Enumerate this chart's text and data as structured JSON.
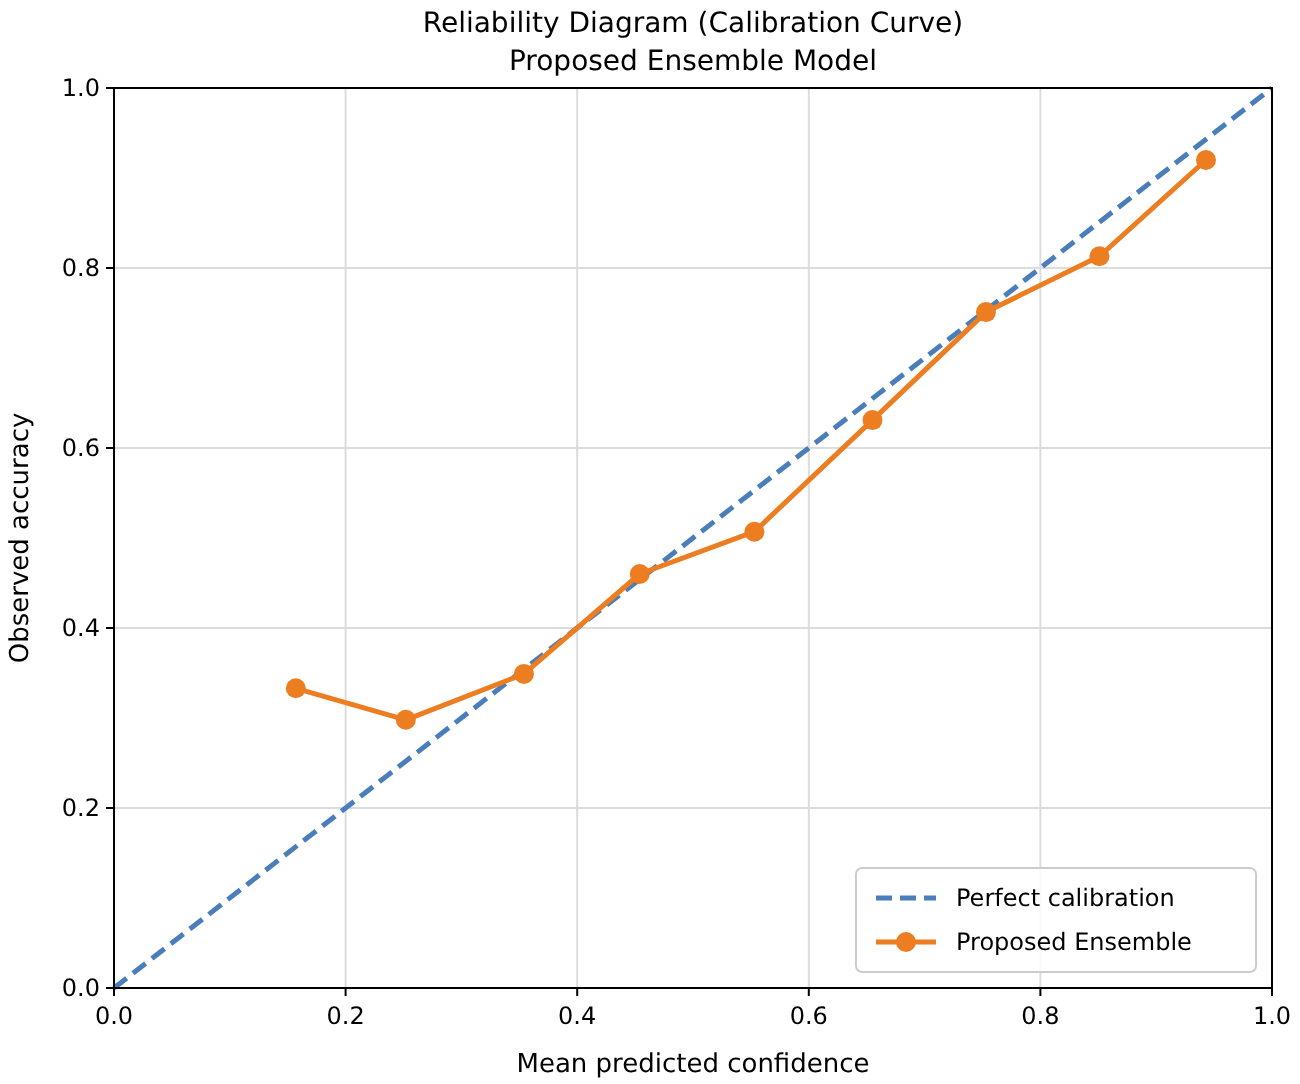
{
  "chart_data": {
    "type": "line",
    "title": "Reliability Diagram (Calibration Curve)",
    "subtitle": "Proposed Ensemble Model",
    "xlabel": "Mean predicted confidence",
    "ylabel": "Observed accuracy",
    "xlim": [
      0,
      1
    ],
    "ylim": [
      0,
      1
    ],
    "xticks": [
      {
        "value": 0,
        "label": "0.0"
      },
      0.2,
      0.4,
      0.6,
      0.8,
      {
        "value": 1,
        "label": "1.0"
      }
    ],
    "yticks": [
      {
        "value": 0,
        "label": "0.0"
      },
      0.2,
      0.4,
      0.6,
      0.8,
      {
        "value": 1,
        "label": "1.0"
      }
    ],
    "grid": true,
    "legend": "bottom right",
    "series": [
      {
        "name": "Perfect calibration",
        "color": "#4a7ebb",
        "x": [
          0,
          1
        ],
        "values": [
          0,
          1
        ],
        "line_style": "dashed",
        "marker": "none"
      },
      {
        "name": "Proposed Ensemble",
        "color": "#ed7d21",
        "x": [
          0.157,
          0.252,
          0.354,
          0.454,
          0.553,
          0.655,
          0.753,
          0.851,
          0.943
        ],
        "values": [
          0.333,
          0.298,
          0.349,
          0.46,
          0.507,
          0.631,
          0.751,
          0.813,
          0.92
        ],
        "line_style": "solid",
        "marker": "circle"
      }
    ]
  }
}
